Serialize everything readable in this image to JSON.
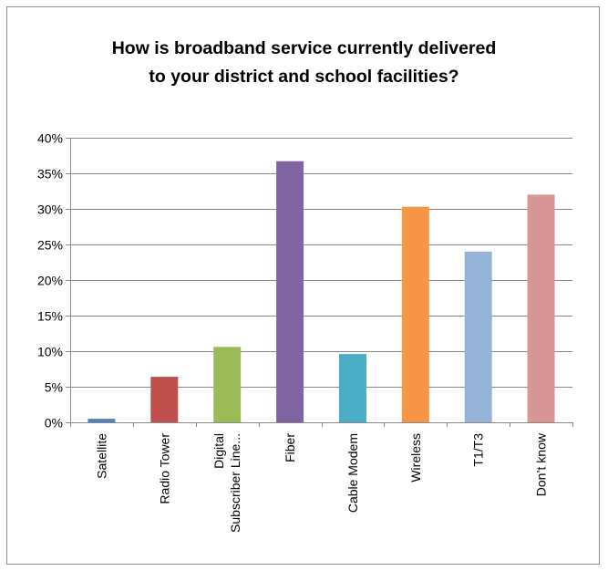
{
  "chart_data": {
    "type": "bar",
    "title_lines": [
      "How is broadband service currently delivered",
      "to your district and school facilities?"
    ],
    "categories": [
      "Satellite",
      "Radio Tower",
      "Digital Subscriber Line...",
      "Fiber",
      "Cable Modem",
      "Wireless",
      "T1/T3",
      "Don’t know"
    ],
    "category_label_lines": [
      [
        "Satellite"
      ],
      [
        "Radio Tower"
      ],
      [
        "Digital",
        "Subscriber Line..."
      ],
      [
        "Fiber"
      ],
      [
        "Cable Modem"
      ],
      [
        "Wireless"
      ],
      [
        "T1/T3"
      ],
      [
        "Don’t know"
      ]
    ],
    "values": [
      0.5,
      6.4,
      10.6,
      36.7,
      9.6,
      30.3,
      24.0,
      32.0
    ],
    "colors": [
      "#4f81bd",
      "#c0504d",
      "#9bbb59",
      "#8064a2",
      "#4bacc6",
      "#f79646",
      "#95b3d7",
      "#d99694"
    ],
    "ylim": [
      0,
      40
    ],
    "yticks": [
      "0%",
      "5%",
      "10%",
      "15%",
      "20%",
      "25%",
      "30%",
      "35%",
      "40%"
    ],
    "xlabel": "",
    "ylabel": "",
    "grid": true,
    "legend": false
  }
}
